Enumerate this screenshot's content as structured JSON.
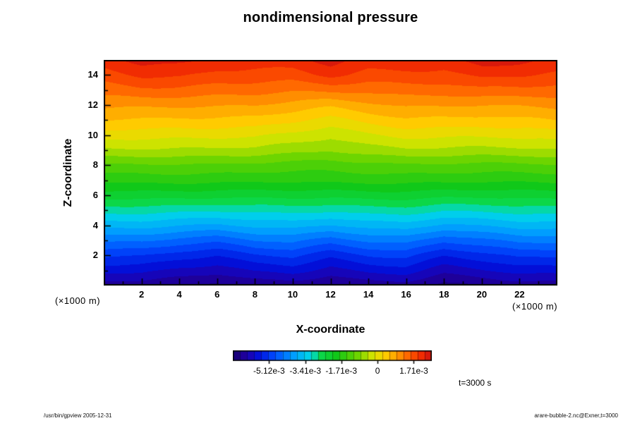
{
  "title": "nondimensional pressure",
  "axes": {
    "x_label": "X-coordinate",
    "y_label": "Z-coordinate",
    "unit_left": "(×1000 m)",
    "unit_right": "(×1000 m)",
    "x_ticks": [
      2,
      4,
      6,
      8,
      10,
      12,
      14,
      16,
      18,
      20,
      22
    ],
    "y_ticks": [
      2,
      4,
      6,
      8,
      10,
      12,
      14
    ],
    "x_range": [
      0,
      24
    ],
    "y_range": [
      0,
      15
    ]
  },
  "colorbar": {
    "tick_labels": [
      "-5.12e-3",
      "-3.41e-3",
      "-1.71e-3",
      "0",
      "1.71e-3"
    ],
    "tick_values": [
      -5.12,
      -3.41,
      -1.71,
      0,
      1.71
    ]
  },
  "annotations": {
    "time_label": "t=3000 s",
    "footer_left": "/usr/bin/gpview 2005-12-31",
    "footer_right": "arare-bubble-2.nc@Exner,t=3000"
  },
  "chart_data": {
    "type": "heatmap",
    "title": "nondimensional pressure",
    "xlabel": "X-coordinate (×1000 m)",
    "ylabel": "Z-coordinate (×1000 m)",
    "x": [
      0,
      2,
      4,
      6,
      8,
      10,
      12,
      14,
      16,
      18,
      20,
      22,
      24
    ],
    "z": [
      0,
      1,
      2,
      3,
      4,
      5,
      6,
      7,
      8,
      9,
      10,
      11,
      12,
      13,
      14,
      15
    ],
    "z_order": "bottom-to-top",
    "values_scale": 0.001,
    "vmin": -6.83,
    "vmax": 2.56,
    "n_levels": 28,
    "values": [
      [
        -6.36,
        -6.39,
        -6.51,
        -6.57,
        -6.39,
        -6.33,
        -6.54,
        -6.39,
        -6.33,
        -6.57,
        -6.45,
        -6.33,
        -6.36
      ],
      [
        -5.69,
        -5.74,
        -5.92,
        -6.01,
        -5.74,
        -5.65,
        -5.96,
        -5.74,
        -5.65,
        -6.01,
        -5.83,
        -5.65,
        -5.69
      ],
      [
        -5.1,
        -5.15,
        -5.35,
        -5.45,
        -5.15,
        -5.05,
        -5.4,
        -5.15,
        -5.05,
        -5.45,
        -5.25,
        -5.05,
        -5.1
      ],
      [
        -4.39,
        -4.44,
        -4.62,
        -4.71,
        -4.44,
        -4.35,
        -4.66,
        -4.44,
        -4.35,
        -4.71,
        -4.53,
        -4.35,
        -4.39
      ],
      [
        -3.66,
        -3.69,
        -3.81,
        -3.87,
        -3.69,
        -3.63,
        -3.84,
        -3.69,
        -3.63,
        -3.87,
        -3.75,
        -3.63,
        -3.66
      ],
      [
        -2.98,
        -3.0,
        -3.06,
        -3.09,
        -3.0,
        -2.97,
        -3.07,
        -3.0,
        -2.97,
        -3.09,
        -3.03,
        -2.97,
        -2.98
      ],
      [
        -2.31,
        -2.32,
        -2.34,
        -2.35,
        -2.32,
        -2.31,
        -2.34,
        -2.32,
        -2.31,
        -2.35,
        -2.33,
        -2.31,
        -2.31
      ],
      [
        -1.7,
        -1.7,
        -1.7,
        -1.7,
        -1.7,
        -1.7,
        -1.7,
        -1.7,
        -1.7,
        -1.7,
        -1.7,
        -1.7,
        -1.7
      ],
      [
        -1.17,
        -1.19,
        -1.2,
        -1.2,
        -1.2,
        -1.25,
        -1.31,
        -1.25,
        -1.2,
        -1.2,
        -1.2,
        -1.19,
        -1.17
      ],
      [
        -0.49,
        -0.52,
        -0.55,
        -0.55,
        -0.55,
        -0.64,
        -0.76,
        -0.64,
        -0.55,
        -0.55,
        -0.55,
        -0.52,
        -0.49
      ],
      [
        0.04,
        0.0,
        -0.05,
        -0.05,
        -0.05,
        -0.19,
        -0.37,
        -0.19,
        -0.05,
        -0.05,
        -0.05,
        0.0,
        0.04
      ],
      [
        0.55,
        0.5,
        0.45,
        0.45,
        0.45,
        0.3,
        0.1,
        0.3,
        0.45,
        0.45,
        0.45,
        0.5,
        0.55
      ],
      [
        0.98,
        0.94,
        0.9,
        0.9,
        0.9,
        0.78,
        0.62,
        0.78,
        0.9,
        0.9,
        0.9,
        0.94,
        0.98
      ],
      [
        1.39,
        1.47,
        1.43,
        1.35,
        1.35,
        1.29,
        1.33,
        1.29,
        1.35,
        1.35,
        1.47,
        1.47,
        1.43
      ],
      [
        1.75,
        1.95,
        1.91,
        1.75,
        1.75,
        1.75,
        1.99,
        1.75,
        1.75,
        1.75,
        1.99,
        1.95,
        1.83
      ],
      [
        2.1,
        2.35,
        2.3,
        2.1,
        2.1,
        2.1,
        2.4,
        2.1,
        2.1,
        2.1,
        2.4,
        2.35,
        2.2
      ]
    ],
    "colormap": [
      {
        "t": 0.0,
        "c": "#16006e"
      },
      {
        "t": 0.07,
        "c": "#2000a8"
      },
      {
        "t": 0.13,
        "c": "#0010dc"
      },
      {
        "t": 0.21,
        "c": "#004cff"
      },
      {
        "t": 0.3,
        "c": "#009cff"
      },
      {
        "t": 0.39,
        "c": "#00d8e8"
      },
      {
        "t": 0.44,
        "c": "#0cd84c"
      },
      {
        "t": 0.52,
        "c": "#10c818"
      },
      {
        "t": 0.62,
        "c": "#66d400"
      },
      {
        "t": 0.7,
        "c": "#d2e400"
      },
      {
        "t": 0.76,
        "c": "#ffd200"
      },
      {
        "t": 0.82,
        "c": "#ffa000"
      },
      {
        "t": 0.88,
        "c": "#ff6400"
      },
      {
        "t": 0.94,
        "c": "#f53000"
      },
      {
        "t": 1.0,
        "c": "#cc0f0f"
      }
    ]
  }
}
